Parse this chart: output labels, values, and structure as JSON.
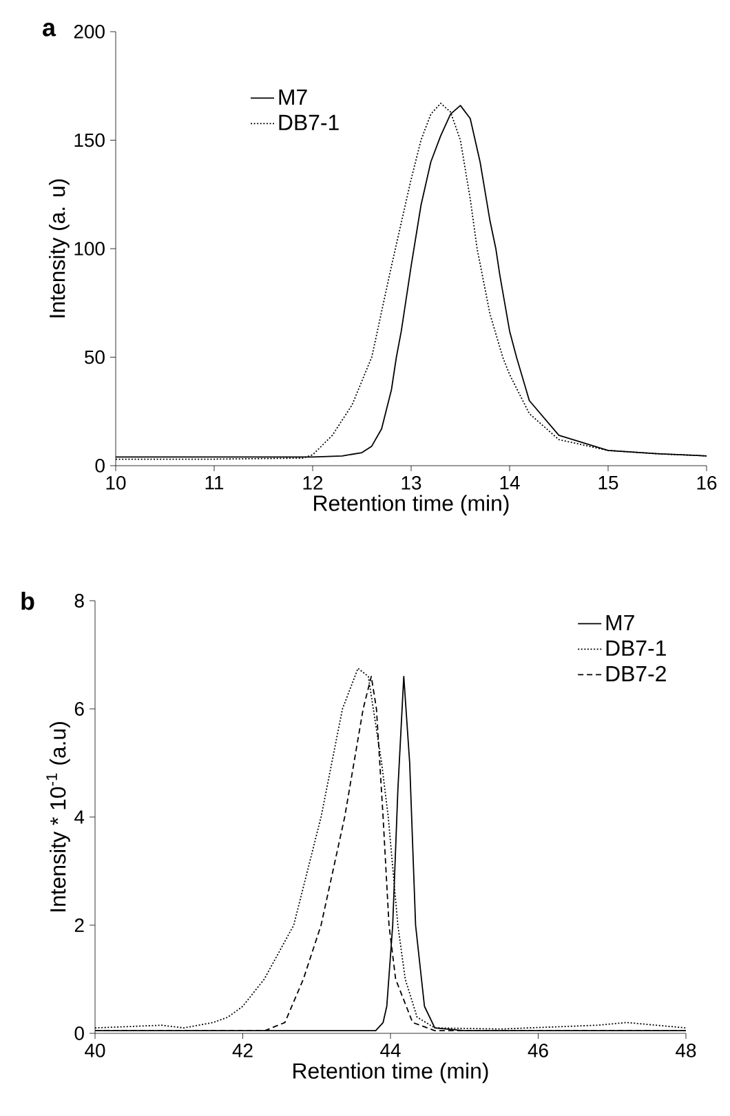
{
  "chart_data": [
    {
      "type": "line",
      "title": "a",
      "xlabel": "Retention time (min)",
      "ylabel": "Intensity (a. u)",
      "xlim": [
        10,
        16
      ],
      "ylim": [
        0,
        200
      ],
      "xticks": [
        10,
        11,
        12,
        13,
        14,
        15,
        16
      ],
      "yticks": [
        0,
        50,
        100,
        150,
        200
      ],
      "legend": "top left",
      "grid": false,
      "series": [
        {
          "name": "M7",
          "color": "#000000",
          "line_style": "solid",
          "x": [
            10,
            11,
            12,
            12.3,
            12.5,
            12.6,
            12.7,
            12.8,
            12.85,
            12.9,
            13.0,
            13.1,
            13.2,
            13.3,
            13.4,
            13.5,
            13.6,
            13.7,
            13.8,
            13.86,
            13.9,
            14.0,
            14.07,
            14.2,
            14.5,
            15.0,
            15.5,
            16
          ],
          "values": [
            4,
            4,
            4,
            4.5,
            6,
            9,
            17,
            35,
            50,
            62,
            92,
            120,
            140,
            152,
            162,
            166,
            160,
            140,
            113,
            100,
            88,
            62,
            50,
            30,
            14,
            7,
            5.5,
            4.5
          ]
        },
        {
          "name": "DB7-1",
          "color": "#000000",
          "line_style": "dotted",
          "x": [
            10,
            11,
            11.9,
            12.0,
            12.2,
            12.4,
            12.6,
            12.8,
            12.9,
            13.0,
            13.1,
            13.2,
            13.3,
            13.4,
            13.5,
            13.6,
            13.67,
            13.8,
            13.93,
            14.0,
            14.2,
            14.5,
            15.0,
            15.5,
            16
          ],
          "values": [
            3,
            3,
            3.5,
            5,
            14,
            28,
            50,
            92,
            112,
            132,
            150,
            162,
            167,
            163,
            150,
            123,
            100,
            70,
            50,
            42,
            24,
            12,
            7,
            5.5,
            4.5
          ]
        }
      ]
    },
    {
      "type": "line",
      "title": "b",
      "xlabel": "Retention time (min)",
      "ylabel": "Intensity * 10$^{-1}$ (a.u)",
      "xlim": [
        40,
        48
      ],
      "ylim": [
        0,
        8
      ],
      "xticks": [
        40,
        42,
        44,
        46,
        48
      ],
      "yticks": [
        0,
        2,
        4,
        6,
        8
      ],
      "legend": "top right",
      "grid": false,
      "series": [
        {
          "name": "M7",
          "color": "#000000",
          "line_style": "solid",
          "x": [
            40,
            43.8,
            43.9,
            43.95,
            44.03,
            44.1,
            44.18,
            44.26,
            44.34,
            44.46,
            44.6,
            45,
            48
          ],
          "values": [
            0.05,
            0.05,
            0.2,
            0.5,
            2,
            4.5,
            6.6,
            5,
            2,
            0.5,
            0.1,
            0.05,
            0.05
          ]
        },
        {
          "name": "DB7-1",
          "color": "#000000",
          "line_style": "dotted",
          "x": [
            40,
            40.9,
            41.2,
            41.6,
            41.8,
            42.0,
            42.29,
            42.69,
            43.06,
            43.35,
            43.56,
            43.7,
            43.88,
            43.97,
            44.1,
            44.2,
            44.36,
            44.6,
            45.5,
            46.8,
            47.2,
            48
          ],
          "values": [
            0.1,
            0.15,
            0.1,
            0.2,
            0.3,
            0.5,
            1,
            2,
            4,
            6,
            6.75,
            6.6,
            5,
            4,
            2,
            1,
            0.3,
            0.1,
            0.08,
            0.15,
            0.2,
            0.1
          ]
        },
        {
          "name": "DB7-2",
          "color": "#000000",
          "line_style": "dashed",
          "x": [
            40,
            42.3,
            42.57,
            42.82,
            43.06,
            43.38,
            43.63,
            43.74,
            43.81,
            43.9,
            43.98,
            44.07,
            44.3,
            44.6,
            48
          ],
          "values": [
            0.05,
            0.05,
            0.2,
            1,
            2,
            4,
            6,
            6.6,
            6,
            4,
            2,
            1,
            0.2,
            0.05,
            0.05
          ]
        }
      ]
    }
  ]
}
